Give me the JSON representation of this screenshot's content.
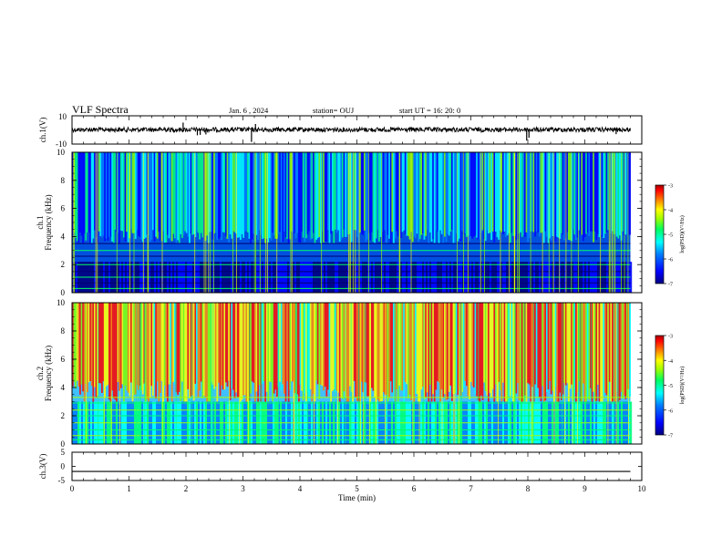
{
  "header": {
    "title": "VLF Spectra",
    "date": "Jan. 6 , 2024",
    "station": "station= OUJ",
    "start": "start UT =   16: 20: 0"
  },
  "chart_data": [
    {
      "type": "line",
      "ylabel": "ch.1(V)",
      "xlabel": "",
      "xlim": [
        0,
        10
      ],
      "ylim": [
        -10,
        10
      ],
      "yticks": [
        "10",
        "-10"
      ],
      "baseline": 0.2,
      "spikes": [
        {
          "x": 1.62,
          "y": 2.0
        },
        {
          "x": 1.95,
          "y": 5.2
        },
        {
          "x": 2.2,
          "y": -3.8
        },
        {
          "x": 2.25,
          "y": -3.5
        },
        {
          "x": 2.35,
          "y": -3.2
        },
        {
          "x": 3.15,
          "y": -8.5
        },
        {
          "x": 3.22,
          "y": 4.2
        },
        {
          "x": 7.98,
          "y": -7.5
        },
        {
          "x": 8.02,
          "y": -5.5
        },
        {
          "x": 9.55,
          "y": -3.0
        }
      ]
    },
    {
      "type": "heatmap",
      "ylabel": "ch.1",
      "ylabel2": "Frequency (kHz)",
      "xlim": [
        0,
        10
      ],
      "ylim": [
        0,
        10
      ],
      "yticks": [
        "0",
        "2",
        "4",
        "6",
        "8",
        "10"
      ],
      "data_end_x": 9.8,
      "colorbar": {
        "label": "log(PSD)(V²/Hz)",
        "ticks": [
          "-3",
          "-4",
          "-5",
          "-6",
          "-7"
        ],
        "range": [
          -7,
          -3
        ]
      }
    },
    {
      "type": "heatmap",
      "ylabel": "ch.2",
      "ylabel2": "Frequency (kHz)",
      "xlim": [
        0,
        10
      ],
      "ylim": [
        0,
        10
      ],
      "yticks": [
        "0",
        "2",
        "4",
        "6",
        "8",
        "10"
      ],
      "data_end_x": 9.8,
      "colorbar": {
        "label": "log(PSD)(V²/Hz)",
        "ticks": [
          "-3",
          "-4",
          "-5",
          "-6",
          "-7"
        ],
        "range": [
          -7,
          -3
        ]
      }
    },
    {
      "type": "line",
      "ylabel": "ch.3(V)",
      "xlabel": "Time  (min)",
      "xlim": [
        0,
        10
      ],
      "ylim": [
        -5,
        5
      ],
      "yticks": [
        "5",
        "0",
        "-5"
      ],
      "baseline": -1.8,
      "xticks": [
        "0",
        "1",
        "2",
        "3",
        "4",
        "5",
        "6",
        "7",
        "8",
        "9",
        "10"
      ]
    }
  ],
  "colors": {
    "colormap": [
      "#000080",
      "#0000ff",
      "#0080ff",
      "#00ffff",
      "#00ff80",
      "#80ff00",
      "#ffff00",
      "#ff8000",
      "#ff0000",
      "#800000"
    ],
    "line": "#000000"
  }
}
